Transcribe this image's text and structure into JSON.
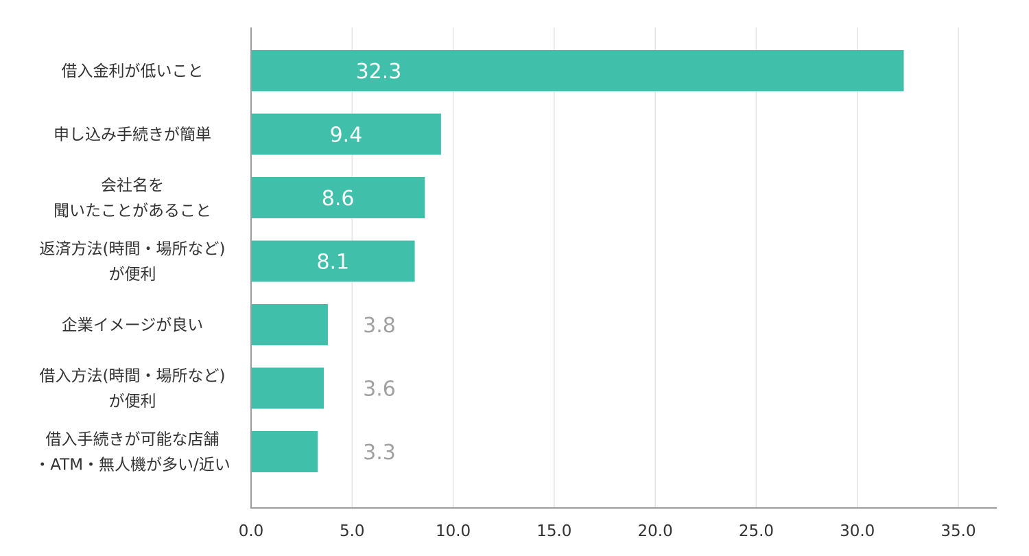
{
  "chart_data": {
    "type": "bar",
    "orientation": "horizontal",
    "categories": [
      [
        "借入金利が低いこと"
      ],
      [
        "申し込み手続きが簡単"
      ],
      [
        "会社名を",
        "聞いたことがあること"
      ],
      [
        "返済方法(時間・場所など)",
        "が便利"
      ],
      [
        "企業イメージが良い"
      ],
      [
        "借入方法(時間・場所など)",
        "が便利"
      ],
      [
        "借入手続きが可能な店舗",
        "・ATM・無人機が多い/近い"
      ]
    ],
    "values": [
      32.3,
      9.4,
      8.6,
      8.1,
      3.8,
      3.6,
      3.3
    ],
    "value_labels": [
      "32.3",
      "9.4",
      "8.6",
      "8.1",
      "3.8",
      "3.6",
      "3.3"
    ],
    "x_ticks": [
      "0.0",
      "5.0",
      "10.0",
      "15.0",
      "20.0",
      "25.0",
      "30.0",
      "35.0"
    ],
    "xlim": [
      0,
      35.7
    ],
    "title": "",
    "xlabel": "",
    "ylabel": "",
    "grid": "vertical",
    "bar_color": "#40bfab",
    "inside_label_color": "#ffffff",
    "outside_label_color": "#a0a0a0"
  }
}
